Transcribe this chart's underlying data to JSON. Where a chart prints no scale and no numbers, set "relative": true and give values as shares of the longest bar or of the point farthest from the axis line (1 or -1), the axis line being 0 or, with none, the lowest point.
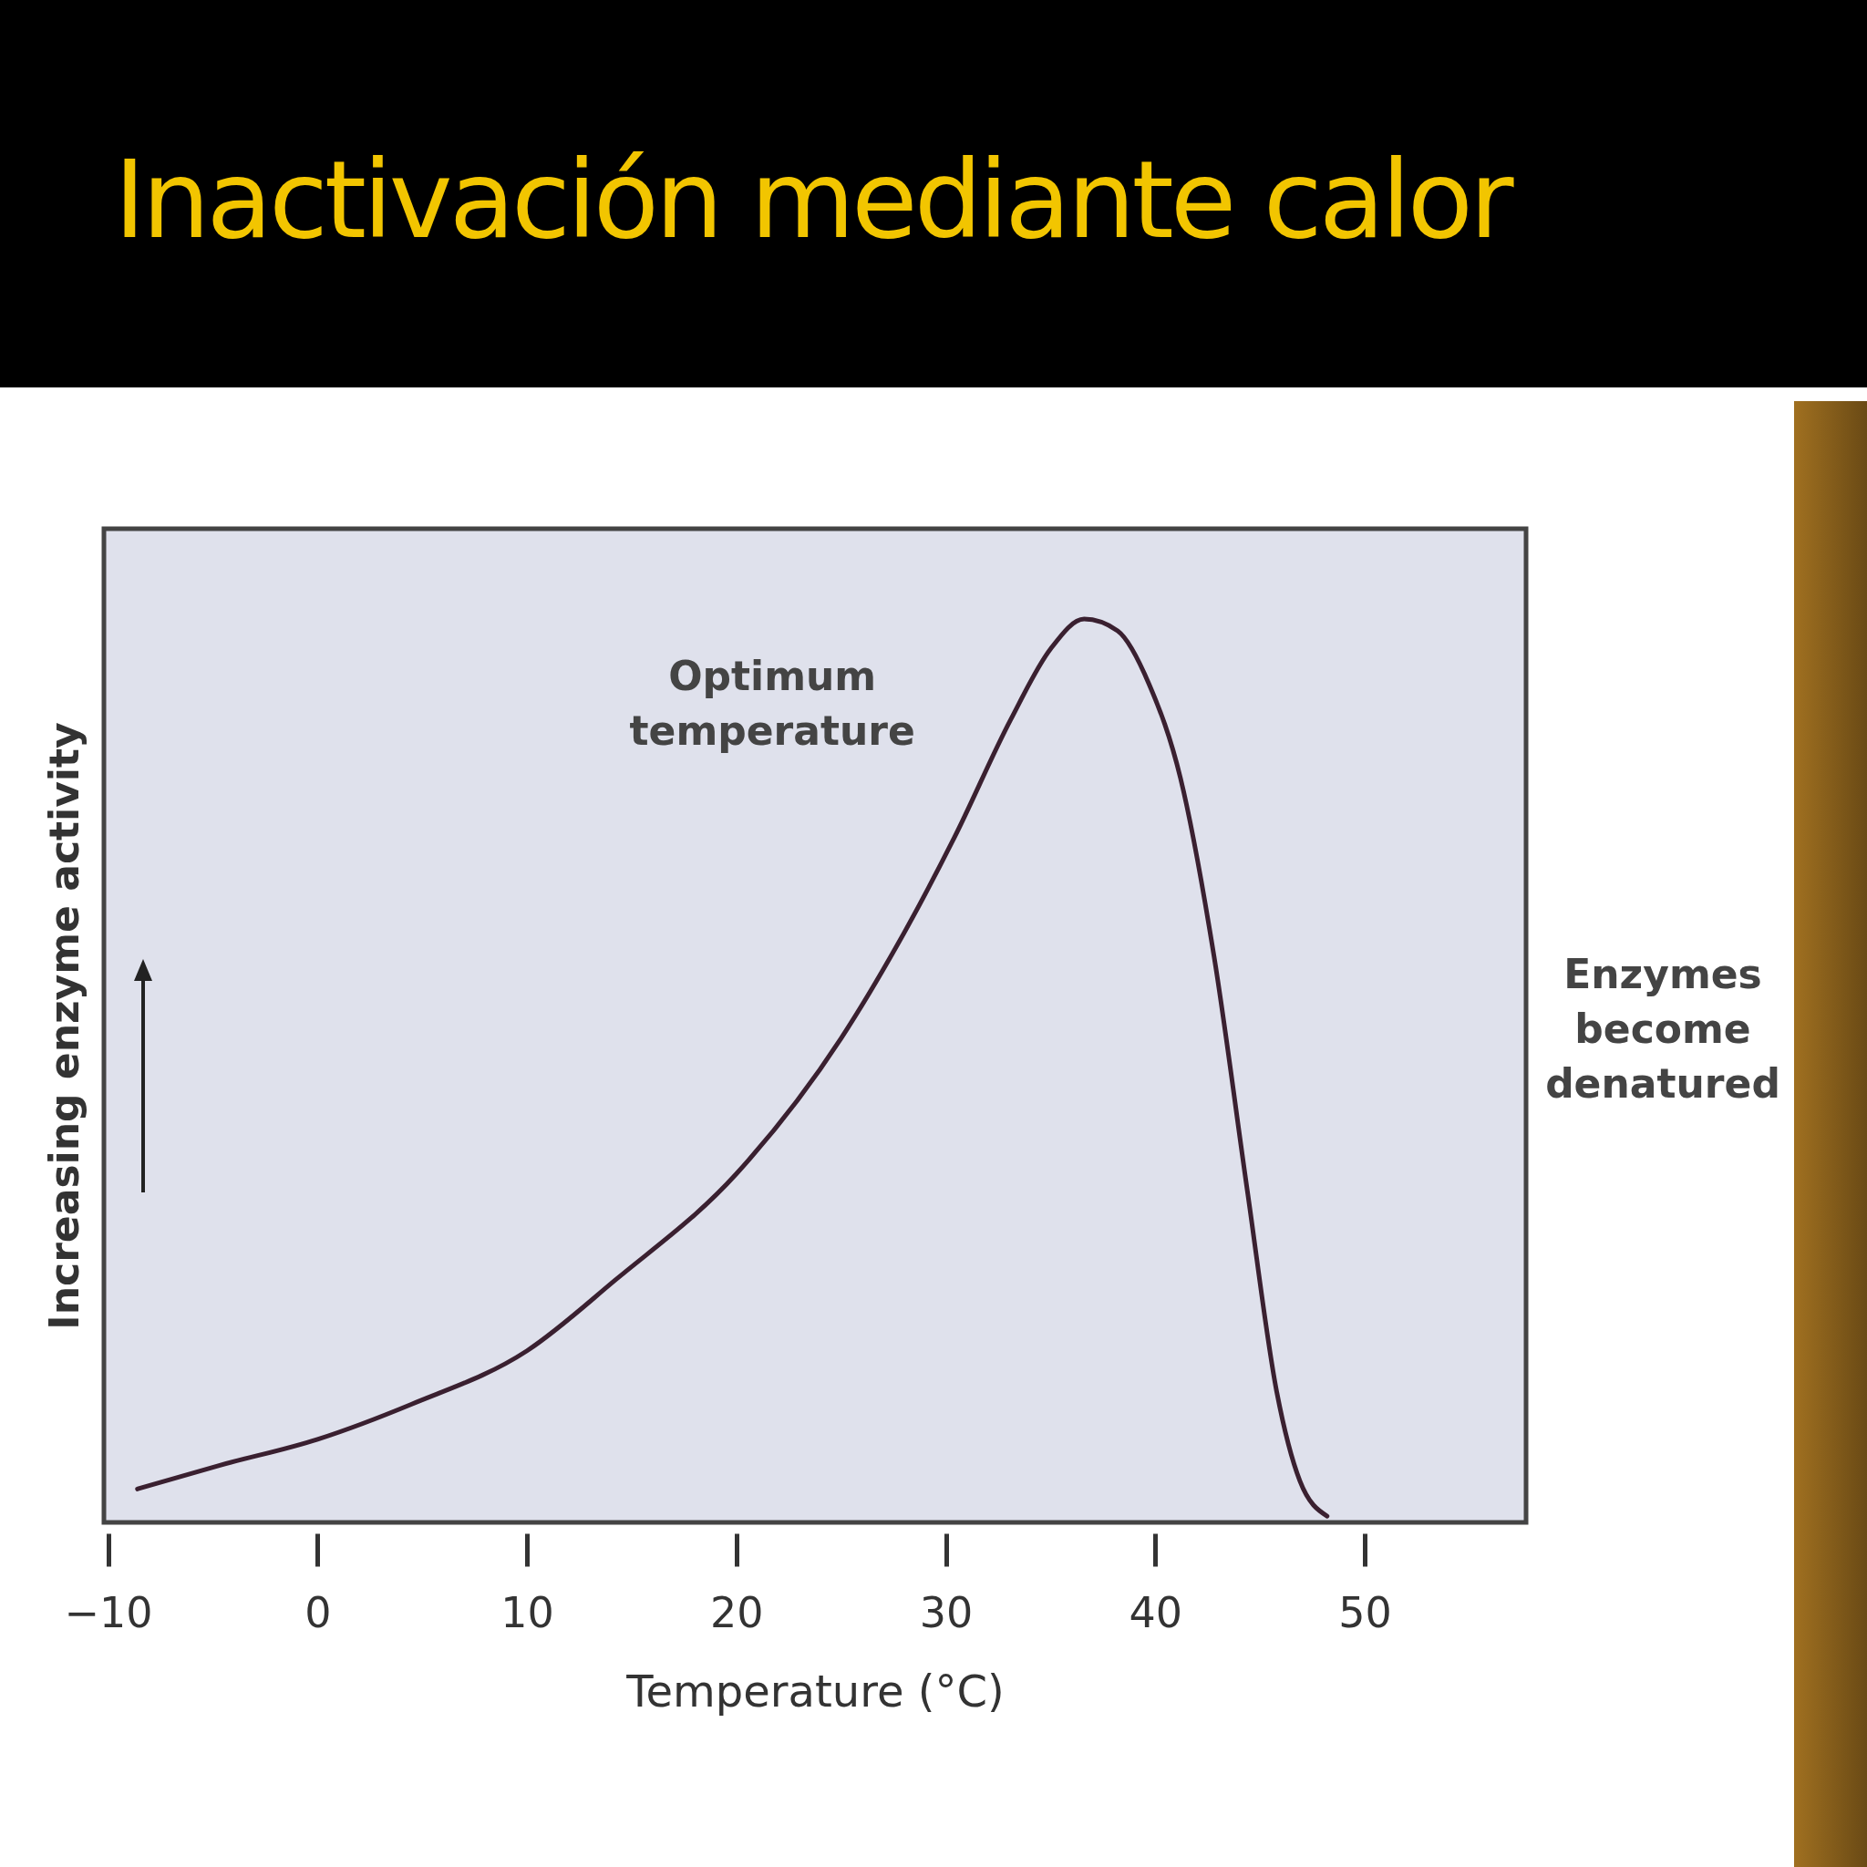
{
  "chart_data": {
    "type": "line",
    "title": "Inactivación mediante calor",
    "xlabel": "Temperature (°C)",
    "ylabel": "Increasing enzyme activity",
    "relative": true,
    "xlim": [
      -10.2,
      57.7
    ],
    "xticks": [
      -10,
      0,
      10,
      20,
      30,
      40,
      50
    ],
    "grid": false,
    "marker": "none",
    "line_style": "solid",
    "x": [
      -8.6,
      -4.7,
      0,
      4.5,
      10,
      14.2,
      20,
      25,
      27.7,
      30.4,
      33.1,
      35,
      36.6,
      38.2,
      39.7,
      41.2,
      42.8,
      44.4,
      45.8,
      46.9,
      48.2
    ],
    "series": [
      {
        "color": "#3a2030",
        "values": [
          0.037,
          0.063,
          0.092,
          0.131,
          0.19,
          0.268,
          0.386,
          0.536,
          0.64,
          0.758,
          0.889,
          0.967,
          1.0,
          0.987,
          0.928,
          0.824,
          0.627,
          0.366,
          0.144,
          0.046,
          0.007
        ]
      }
    ],
    "annotations": [
      "Optimum temperature",
      "Enzymes become denatured"
    ]
  }
}
